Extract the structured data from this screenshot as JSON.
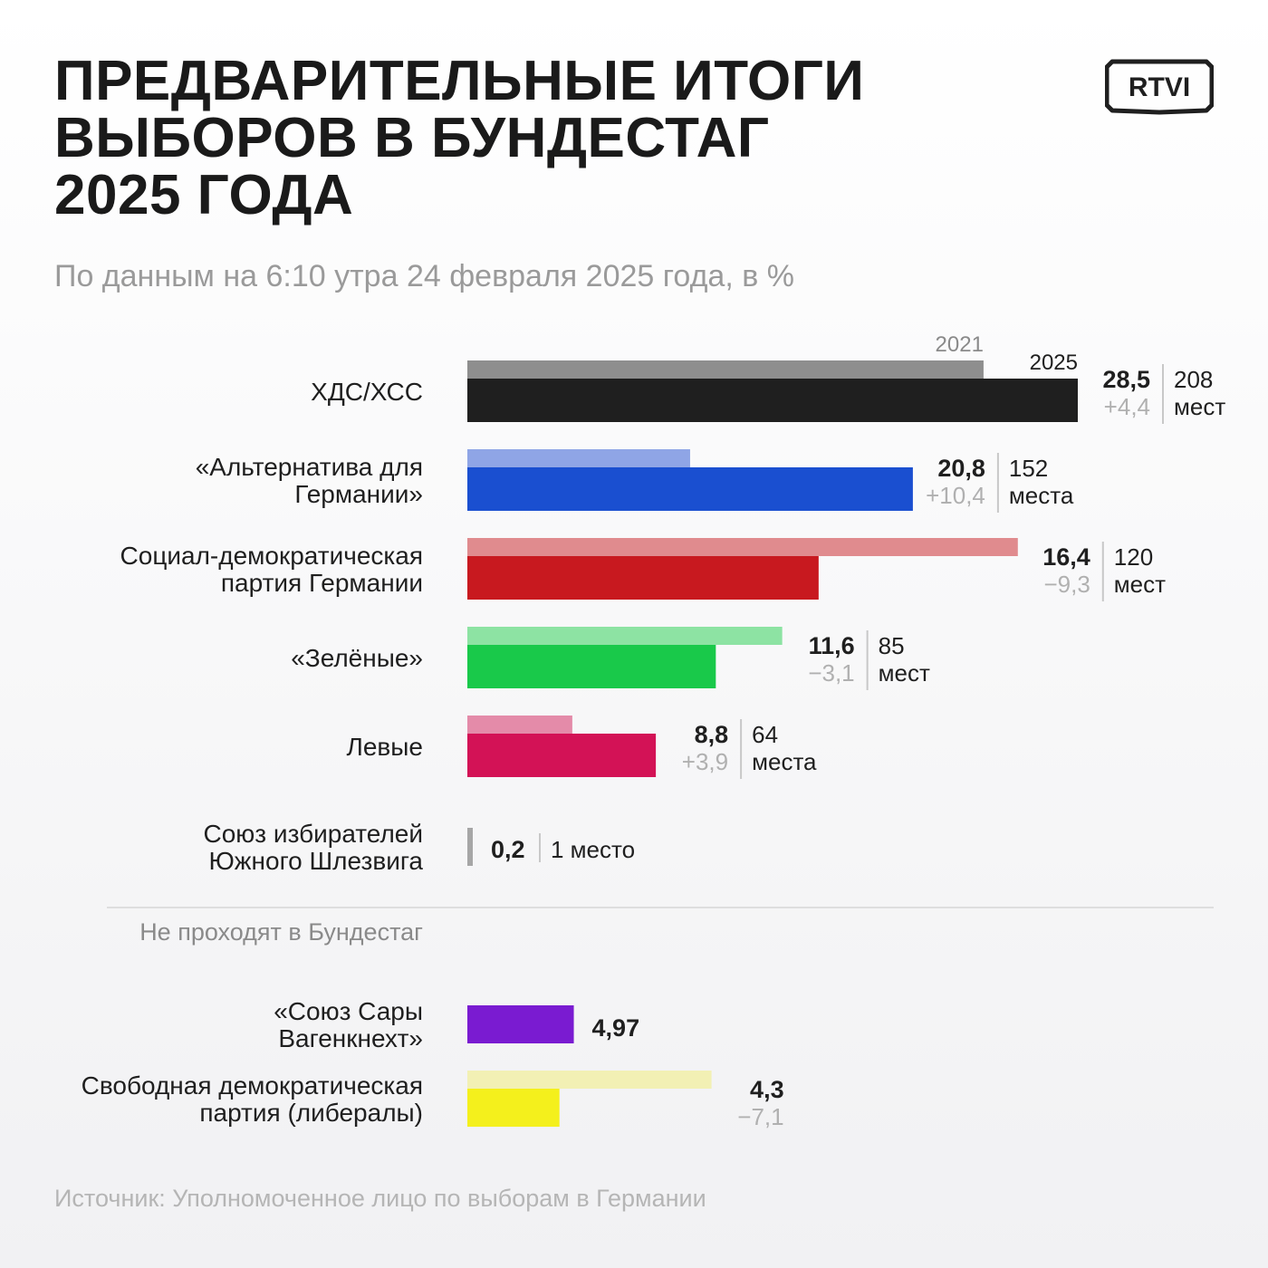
{
  "title_lines": [
    "ПРЕДВАРИТЕЛЬНЫЕ ИТОГИ",
    "ВЫБОРОВ В БУНДЕСТАГ",
    "2025 ГОДА"
  ],
  "subtitle": "По данным на 6:10 утра 24 февраля 2025 года, в %",
  "source": "Источник: Уполномоченное лицо по выборам в Германии",
  "logo_text": "RTVI",
  "colors": {
    "ink": "#1f1f1f",
    "muted": "#b0b0b0",
    "divider": "#c8c8c8"
  },
  "chart_data": {
    "type": "bar",
    "orientation": "horizontal",
    "legend": {
      "prev_year": "2021",
      "curr_year": "2025"
    },
    "separator_label": "Не проходят в Бундестаг",
    "parties": [
      {
        "name": [
          "ХДС/ХСС"
        ],
        "value": 28.5,
        "value_label": "28,5",
        "prev": 24.1,
        "change": "+4,4",
        "seats": [
          "208",
          "мест"
        ],
        "color": "#1f1f1f",
        "prev_color": "#8e8e8e",
        "passed": true
      },
      {
        "name": [
          "«Альтернатива для",
          "Германии»"
        ],
        "value": 20.8,
        "value_label": "20,8",
        "prev": 10.4,
        "change": "+10,4",
        "seats": [
          "152",
          "места"
        ],
        "color": "#1a4fd0",
        "prev_color": "#8fa5e6",
        "passed": true
      },
      {
        "name": [
          "Социал-демократическая",
          "партия Германии"
        ],
        "value": 16.4,
        "value_label": "16,4",
        "prev": 25.7,
        "change": "−9,3",
        "seats": [
          "120",
          "мест"
        ],
        "color": "#c8191f",
        "prev_color": "#e08b8e",
        "passed": true
      },
      {
        "name": [
          "«Зелёные»"
        ],
        "value": 11.6,
        "value_label": "11,6",
        "prev": 14.7,
        "change": "−3,1",
        "seats": [
          "85",
          "мест"
        ],
        "color": "#19c94a",
        "prev_color": "#8de3a3",
        "passed": true
      },
      {
        "name": [
          "Левые"
        ],
        "value": 8.8,
        "value_label": "8,8",
        "prev": 4.9,
        "change": "+3,9",
        "seats": [
          "64",
          "места"
        ],
        "color": "#d31256",
        "prev_color": "#e48ba9",
        "passed": true
      },
      {
        "name": [
          "Союз избирателей",
          "Южного Шлезвига"
        ],
        "value": 0.2,
        "value_label": "0,2",
        "prev": null,
        "change": "",
        "seats": [
          "1 место"
        ],
        "color": "#a6a6a6",
        "prev_color": "",
        "passed": true
      },
      {
        "name": [
          "«Союз Сары",
          "Вагенкнехт»"
        ],
        "value": 4.97,
        "value_label": "4,97",
        "prev": null,
        "change": "",
        "seats": [],
        "color": "#7a1bd1",
        "prev_color": "",
        "passed": false
      },
      {
        "name": [
          "Свободная демократическая",
          "партия (либералы)"
        ],
        "value": 4.3,
        "value_label": "4,3",
        "prev": 11.4,
        "change": "−7,1",
        "seats": [],
        "color": "#f4f01c",
        "prev_color": "#f2f0b4",
        "passed": false
      }
    ]
  }
}
